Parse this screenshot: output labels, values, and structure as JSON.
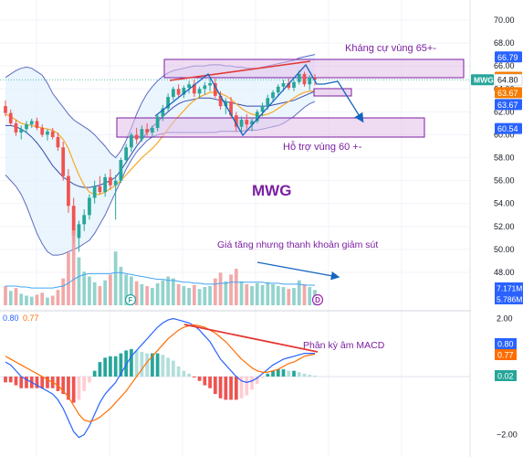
{
  "chart_data": {
    "type": "candlestick",
    "symbol": "MWG",
    "price_axis": {
      "ticks": [
        "70.00",
        "68.00",
        "66.00",
        "64.00",
        "62.00",
        "60.00",
        "58.00",
        "56.00",
        "54.00",
        "52.00",
        "50.00",
        "48.00"
      ],
      "ylim": [
        46.5,
        71.5
      ]
    },
    "price_labels": [
      {
        "text": "66.79",
        "value": 66.79,
        "bg": "#2962ff",
        "fg": "#ffffff"
      },
      {
        "text": "65.02",
        "value": 65.02,
        "bg": "#f57c00",
        "fg": "#ffffff"
      },
      {
        "text": "64.80",
        "value": 64.8,
        "bg": "#ffffff",
        "fg": "#131722",
        "ticker": "MWG"
      },
      {
        "text": "63.67",
        "value": 63.67,
        "bg": "#f57c00",
        "fg": "#ffffff"
      },
      {
        "text": "63.67",
        "value": 63.67,
        "bg": "#2962ff",
        "fg": "#ffffff",
        "offset": 13
      },
      {
        "text": "60.54",
        "value": 60.54,
        "bg": "#2962ff",
        "fg": "#ffffff"
      }
    ],
    "volume_labels": [
      {
        "text": "7.171M",
        "bg": "#2962ff"
      },
      {
        "text": "5.786M",
        "bg": "#2962ff"
      }
    ],
    "macd_axis": {
      "ticks": [
        "2.00",
        "0.00",
        "−2.00"
      ],
      "ylim": [
        -2.4,
        2.4
      ]
    },
    "macd_legend": {
      "macd": "0.80",
      "signal": "0.77",
      "macd_color": "#2962ff",
      "signal_color": "#ff6d00"
    },
    "macd_labels": [
      {
        "text": "0.80",
        "value": 0.8,
        "bg": "#2962ff"
      },
      {
        "text": "0.77",
        "value": 0.77,
        "bg": "#ff6d00"
      },
      {
        "text": "0.02",
        "value": 0.02,
        "bg": "#26a69a"
      }
    ],
    "candles": [
      [
        62.5,
        63.0,
        61.6,
        61.9
      ],
      [
        61.9,
        62.2,
        60.8,
        61.0
      ],
      [
        61.0,
        61.3,
        59.9,
        60.2
      ],
      [
        60.2,
        60.8,
        59.6,
        60.5
      ],
      [
        60.5,
        61.2,
        60.1,
        60.9
      ],
      [
        60.9,
        61.4,
        60.6,
        61.2
      ],
      [
        61.2,
        61.5,
        60.4,
        60.6
      ],
      [
        60.6,
        60.9,
        59.8,
        60.0
      ],
      [
        60.0,
        60.5,
        59.5,
        60.3
      ],
      [
        60.3,
        60.6,
        59.6,
        59.8
      ],
      [
        59.8,
        60.2,
        58.6,
        58.9
      ],
      [
        58.9,
        59.4,
        56.0,
        56.4
      ],
      [
        56.4,
        57.0,
        53.2,
        53.8
      ],
      [
        53.8,
        54.5,
        50.5,
        51.2
      ],
      [
        51.0,
        52.5,
        49.8,
        52.2
      ],
      [
        52.2,
        53.5,
        51.6,
        53.0
      ],
      [
        53.0,
        54.8,
        52.6,
        54.5
      ],
      [
        54.5,
        56.0,
        54.0,
        55.5
      ],
      [
        55.5,
        56.4,
        54.8,
        55.0
      ],
      [
        55.0,
        56.6,
        54.6,
        56.3
      ],
      [
        56.3,
        57.0,
        55.2,
        55.6
      ],
      [
        55.6,
        56.5,
        52.6,
        56.0
      ],
      [
        56.0,
        58.0,
        55.8,
        57.8
      ],
      [
        57.8,
        59.2,
        57.5,
        58.9
      ],
      [
        58.9,
        60.2,
        58.5,
        60.0
      ],
      [
        60.0,
        60.6,
        59.2,
        59.6
      ],
      [
        59.6,
        60.8,
        59.4,
        60.5
      ],
      [
        60.5,
        61.0,
        59.9,
        60.2
      ],
      [
        60.2,
        60.8,
        59.8,
        60.6
      ],
      [
        60.6,
        61.8,
        60.3,
        61.6
      ],
      [
        61.6,
        62.6,
        61.2,
        62.3
      ],
      [
        62.3,
        63.6,
        62.0,
        63.3
      ],
      [
        63.3,
        64.2,
        63.0,
        64.0
      ],
      [
        64.0,
        64.4,
        63.3,
        63.5
      ],
      [
        63.5,
        64.3,
        63.2,
        64.1
      ],
      [
        64.1,
        64.7,
        63.6,
        64.4
      ],
      [
        64.4,
        64.8,
        63.3,
        63.6
      ],
      [
        63.6,
        64.2,
        63.2,
        64.0
      ],
      [
        64.0,
        64.6,
        63.5,
        64.3
      ],
      [
        64.3,
        64.9,
        63.8,
        64.5
      ],
      [
        64.5,
        64.9,
        63.2,
        63.4
      ],
      [
        63.4,
        63.8,
        62.2,
        62.5
      ],
      [
        62.5,
        63.2,
        61.8,
        62.9
      ],
      [
        62.9,
        63.3,
        61.4,
        61.7
      ],
      [
        61.7,
        62.0,
        60.3,
        60.7
      ],
      [
        60.7,
        61.6,
        60.2,
        61.3
      ],
      [
        61.3,
        61.8,
        60.5,
        60.9
      ],
      [
        60.9,
        61.5,
        60.3,
        61.2
      ],
      [
        61.2,
        62.2,
        61.0,
        62.0
      ],
      [
        62.0,
        62.8,
        61.6,
        62.5
      ],
      [
        62.5,
        63.5,
        62.2,
        63.2
      ],
      [
        63.2,
        63.9,
        62.9,
        63.7
      ],
      [
        63.7,
        64.4,
        63.4,
        64.2
      ],
      [
        64.2,
        64.8,
        63.8,
        64.5
      ],
      [
        64.5,
        64.9,
        63.9,
        64.1
      ],
      [
        64.1,
        64.8,
        63.8,
        64.6
      ],
      [
        64.6,
        65.6,
        64.4,
        65.3
      ],
      [
        65.3,
        65.5,
        64.2,
        64.4
      ],
      [
        64.4,
        65.2,
        63.9,
        65.0
      ],
      [
        65.0,
        65.3,
        64.3,
        64.8
      ]
    ],
    "bb_upper": [
      65.0,
      65.3,
      65.6,
      65.8,
      65.9,
      65.8,
      65.5,
      65.2,
      64.5,
      63.6,
      63.0,
      62.4,
      61.8,
      61.3,
      61.0,
      60.7,
      60.4,
      60.0,
      59.5,
      59.0,
      58.4,
      58.0,
      58.6,
      59.5,
      60.6,
      61.8,
      62.8,
      63.6,
      64.2,
      64.7,
      65.1,
      65.4,
      65.6,
      65.7,
      65.8,
      65.9,
      66.0,
      66.0,
      66.0,
      66.1,
      66.1,
      66.1,
      66.0,
      66.0,
      65.9,
      65.9,
      65.8,
      65.8,
      65.8,
      65.9,
      66.0,
      66.1,
      66.2,
      66.3,
      66.4,
      66.5,
      66.7,
      66.8,
      66.9,
      67.0
    ],
    "bb_lower": [
      56.5,
      56.0,
      55.5,
      54.8,
      53.8,
      52.6,
      51.4,
      50.5,
      49.8,
      49.5,
      49.5,
      49.6,
      49.8,
      50.0,
      50.2,
      50.5,
      50.8,
      51.4,
      52.2,
      53.0,
      54.0,
      55.0,
      56.0,
      57.0,
      57.8,
      58.5,
      59.0,
      59.5,
      59.8,
      60.0,
      60.1,
      60.2,
      60.2,
      60.2,
      60.2,
      60.2,
      60.2,
      60.2,
      60.2,
      60.2,
      60.2,
      60.3,
      60.3,
      60.3,
      60.3,
      60.3,
      60.4,
      60.4,
      60.4,
      60.5,
      60.6,
      60.7,
      60.8,
      61.0,
      61.3,
      61.6,
      62.0,
      62.4,
      62.7,
      62.9
    ],
    "bb_basis": [
      60.8,
      60.8,
      60.7,
      60.5,
      60.2,
      59.8,
      59.3,
      58.7,
      58.0,
      57.3,
      56.8,
      56.3,
      56.0,
      55.7,
      55.5,
      55.4,
      55.4,
      55.5,
      55.6,
      55.8,
      56.0,
      56.3,
      56.9,
      57.6,
      58.3,
      59.0,
      59.6,
      60.2,
      60.7,
      61.1,
      61.6,
      62.0,
      62.4,
      62.7,
      62.9,
      63.0,
      63.1,
      63.2,
      63.2,
      63.2,
      63.1,
      63.0,
      62.9,
      62.8,
      62.7,
      62.6,
      62.5,
      62.5,
      62.5,
      62.5,
      62.5,
      62.6,
      62.7,
      62.8,
      62.9,
      63.0,
      63.2,
      63.4,
      63.6,
      63.8
    ],
    "ma_short": [
      61.8,
      61.6,
      61.3,
      61.0,
      60.9,
      60.8,
      60.7,
      60.6,
      60.5,
      60.4,
      60.1,
      59.6,
      58.8,
      57.6,
      56.5,
      55.6,
      55.0,
      54.8,
      54.8,
      55.0,
      55.3,
      55.6,
      56.0,
      56.5,
      57.0,
      57.5,
      58.0,
      58.4,
      58.8,
      59.3,
      59.9,
      60.5,
      61.1,
      61.6,
      62.1,
      62.6,
      63.0,
      63.3,
      63.5,
      63.7,
      63.7,
      63.6,
      63.4,
      63.1,
      62.7,
      62.3,
      62.0,
      61.8,
      61.7,
      61.7,
      61.8,
      62.0,
      62.3,
      62.6,
      62.9,
      63.2,
      63.5,
      63.7,
      63.8,
      63.8
    ],
    "volume": [
      [
        2.0,
        0
      ],
      [
        1.5,
        1
      ],
      [
        1.8,
        0
      ],
      [
        1.2,
        1
      ],
      [
        1.0,
        1
      ],
      [
        0.9,
        1
      ],
      [
        1.1,
        0
      ],
      [
        1.3,
        0
      ],
      [
        0.8,
        1
      ],
      [
        1.0,
        0
      ],
      [
        1.6,
        0
      ],
      [
        2.8,
        0
      ],
      [
        5.5,
        0
      ],
      [
        7.8,
        0
      ],
      [
        5.0,
        1
      ],
      [
        3.5,
        1
      ],
      [
        3.0,
        1
      ],
      [
        2.4,
        1
      ],
      [
        2.0,
        0
      ],
      [
        2.6,
        1
      ],
      [
        3.2,
        0
      ],
      [
        5.6,
        1
      ],
      [
        4.0,
        1
      ],
      [
        3.2,
        1
      ],
      [
        3.0,
        1
      ],
      [
        2.5,
        0
      ],
      [
        2.2,
        1
      ],
      [
        2.0,
        0
      ],
      [
        1.8,
        1
      ],
      [
        2.3,
        1
      ],
      [
        2.6,
        1
      ],
      [
        3.0,
        1
      ],
      [
        2.8,
        1
      ],
      [
        2.2,
        0
      ],
      [
        2.0,
        1
      ],
      [
        1.8,
        1
      ],
      [
        2.1,
        0
      ],
      [
        1.7,
        1
      ],
      [
        1.9,
        1
      ],
      [
        2.0,
        1
      ],
      [
        2.8,
        0
      ],
      [
        3.4,
        0
      ],
      [
        2.5,
        1
      ],
      [
        3.2,
        0
      ],
      [
        3.8,
        0
      ],
      [
        2.5,
        1
      ],
      [
        2.2,
        0
      ],
      [
        2.0,
        1
      ],
      [
        2.3,
        1
      ],
      [
        2.1,
        1
      ],
      [
        2.4,
        1
      ],
      [
        2.2,
        1
      ],
      [
        2.0,
        1
      ],
      [
        1.9,
        1
      ],
      [
        1.7,
        0
      ],
      [
        1.8,
        1
      ],
      [
        2.6,
        1
      ],
      [
        2.2,
        0
      ],
      [
        1.9,
        1
      ],
      [
        1.6,
        1
      ]
    ],
    "vol_ma": [
      2.0,
      2.0,
      2.0,
      1.9,
      1.9,
      1.8,
      1.8,
      1.8,
      1.8,
      1.8,
      1.9,
      2.0,
      2.3,
      2.7,
      3.0,
      3.2,
      3.3,
      3.3,
      3.3,
      3.3,
      3.3,
      3.4,
      3.4,
      3.3,
      3.2,
      3.1,
      3.0,
      2.9,
      2.8,
      2.7,
      2.7,
      2.6,
      2.6,
      2.5,
      2.4,
      2.4,
      2.3,
      2.3,
      2.2,
      2.2,
      2.2,
      2.3,
      2.3,
      2.4,
      2.4,
      2.4,
      2.4,
      2.4,
      2.4,
      2.4,
      2.3,
      2.3,
      2.3,
      2.2,
      2.2,
      2.2,
      2.2,
      2.1,
      2.1,
      2.1
    ],
    "macd_line": [
      0.5,
      0.4,
      0.2,
      0.0,
      -0.1,
      -0.2,
      -0.3,
      -0.4,
      -0.5,
      -0.6,
      -0.8,
      -1.1,
      -1.5,
      -1.9,
      -2.1,
      -2.0,
      -1.7,
      -1.3,
      -0.9,
      -0.6,
      -0.4,
      -0.2,
      0.1,
      0.4,
      0.7,
      0.9,
      1.1,
      1.3,
      1.5,
      1.7,
      1.85,
      1.95,
      2.0,
      1.95,
      1.9,
      1.85,
      1.75,
      1.6,
      1.4,
      1.2,
      0.9,
      0.6,
      0.4,
      0.2,
      0.0,
      -0.15,
      -0.2,
      -0.15,
      -0.05,
      0.1,
      0.25,
      0.4,
      0.5,
      0.6,
      0.65,
      0.7,
      0.75,
      0.8,
      0.8,
      0.8
    ],
    "signal_line": [
      0.7,
      0.6,
      0.5,
      0.4,
      0.3,
      0.2,
      0.1,
      0.0,
      -0.1,
      -0.2,
      -0.3,
      -0.5,
      -0.7,
      -1.0,
      -1.3,
      -1.5,
      -1.55,
      -1.5,
      -1.4,
      -1.25,
      -1.1,
      -0.9,
      -0.7,
      -0.5,
      -0.25,
      0.0,
      0.25,
      0.5,
      0.7,
      0.9,
      1.1,
      1.3,
      1.45,
      1.6,
      1.7,
      1.75,
      1.78,
      1.75,
      1.7,
      1.6,
      1.5,
      1.35,
      1.2,
      1.0,
      0.8,
      0.6,
      0.45,
      0.3,
      0.2,
      0.15,
      0.15,
      0.2,
      0.25,
      0.35,
      0.45,
      0.5,
      0.6,
      0.7,
      0.74,
      0.77
    ],
    "histogram": [
      -0.2,
      -0.2,
      -0.3,
      -0.4,
      -0.4,
      -0.4,
      -0.4,
      -0.4,
      -0.4,
      -0.4,
      -0.5,
      -0.6,
      -0.8,
      -0.9,
      -0.8,
      -0.5,
      -0.2,
      0.2,
      0.5,
      0.65,
      0.7,
      0.7,
      0.8,
      0.9,
      0.95,
      0.9,
      0.85,
      0.8,
      0.8,
      0.8,
      0.75,
      0.65,
      0.55,
      0.35,
      0.2,
      0.1,
      -0.03,
      -0.15,
      -0.3,
      -0.4,
      -0.6,
      -0.75,
      -0.8,
      -0.8,
      -0.8,
      -0.75,
      -0.65,
      -0.45,
      -0.25,
      -0.05,
      0.1,
      0.2,
      0.25,
      0.25,
      0.2,
      0.2,
      0.15,
      0.1,
      0.06,
      0.03
    ],
    "annotations": {
      "resistance": "Kháng cự vùng 65+-",
      "support": "Hỗ trợ vùng 60 +-",
      "symbol_label": "MWG",
      "volume_note": "Giá tăng nhưng thanh khoản giảm sút",
      "macd_note": "Phân kỳ âm MACD"
    },
    "markers": [
      "F",
      "D"
    ],
    "colors": {
      "up": "#26a69a",
      "down": "#ef5350",
      "zone": "#9c27b0",
      "annot": "#7b1fa2",
      "arrow": "#1565c0",
      "trend": "#e53935"
    }
  }
}
